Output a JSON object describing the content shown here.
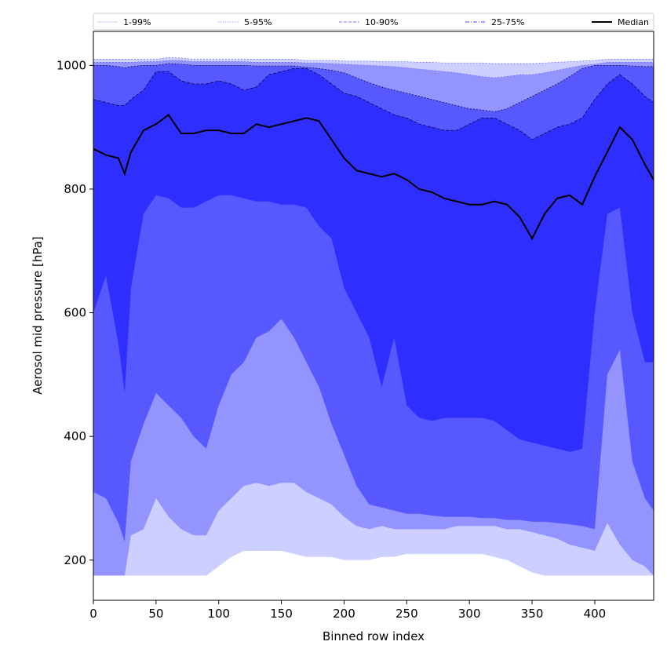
{
  "chart_data": {
    "type": "area",
    "title": "",
    "xlabel": "Binned row index",
    "ylabel": "Aerosol mid pressure [hPa]",
    "xlim": [
      0,
      447
    ],
    "ylim": [
      1055,
      135
    ],
    "y_inverted": false,
    "xticks": [
      0,
      50,
      100,
      150,
      200,
      250,
      300,
      350,
      400
    ],
    "yticks": [
      200,
      400,
      600,
      800,
      1000
    ],
    "legend": {
      "placement": "top",
      "entries": [
        {
          "label": "1-99%",
          "color": "#cccfff",
          "style": "solid"
        },
        {
          "label": "5-95%",
          "color": "#9a9aff",
          "style": "dotted"
        },
        {
          "label": "10-90%",
          "color": "#7a7aff",
          "style": "dashed"
        },
        {
          "label": "25-75%",
          "color": "#4444ff",
          "style": "dashdot"
        },
        {
          "label": "Median",
          "color": "#000000",
          "style": "solid"
        }
      ]
    },
    "band_colors": [
      "#cccfff",
      "#9494ff",
      "#5858ff",
      "#2e2eff"
    ],
    "x": [
      0,
      10,
      20,
      25,
      30,
      40,
      50,
      60,
      70,
      80,
      90,
      100,
      110,
      120,
      130,
      140,
      150,
      160,
      170,
      180,
      190,
      200,
      210,
      220,
      230,
      240,
      250,
      260,
      270,
      280,
      290,
      300,
      310,
      320,
      330,
      340,
      350,
      360,
      370,
      380,
      390,
      400,
      410,
      420,
      430,
      440,
      447
    ],
    "p01": [
      175,
      175,
      175,
      175,
      175,
      175,
      175,
      175,
      175,
      175,
      175,
      190,
      205,
      215,
      215,
      215,
      215,
      210,
      205,
      205,
      205,
      200,
      200,
      200,
      205,
      205,
      210,
      210,
      210,
      210,
      210,
      210,
      210,
      205,
      200,
      190,
      180,
      175,
      175,
      175,
      175,
      175,
      175,
      175,
      175,
      175,
      175
    ],
    "p99": [
      1010,
      1010,
      1010,
      1010,
      1010,
      1010,
      1010,
      1013,
      1012,
      1010,
      1010,
      1010,
      1010,
      1010,
      1010,
      1010,
      1010,
      1010,
      1008,
      1008,
      1008,
      1007,
      1007,
      1007,
      1006,
      1006,
      1006,
      1005,
      1005,
      1004,
      1004,
      1004,
      1004,
      1003,
      1003,
      1003,
      1003,
      1004,
      1005,
      1006,
      1007,
      1008,
      1010,
      1010,
      1010,
      1010,
      1010
    ],
    "p05": [
      175,
      175,
      175,
      175,
      240,
      250,
      300,
      270,
      250,
      240,
      240,
      280,
      300,
      320,
      325,
      320,
      325,
      325,
      310,
      300,
      290,
      270,
      255,
      250,
      255,
      250,
      250,
      250,
      250,
      250,
      255,
      255,
      255,
      255,
      250,
      250,
      245,
      240,
      235,
      225,
      220,
      215,
      260,
      225,
      200,
      190,
      175
    ],
    "p95": [
      1005,
      1005,
      1005,
      1005,
      1005,
      1006,
      1006,
      1008,
      1008,
      1006,
      1006,
      1006,
      1006,
      1006,
      1005,
      1005,
      1005,
      1005,
      1004,
      1004,
      1003,
      1002,
      1001,
      1000,
      999,
      998,
      996,
      994,
      992,
      990,
      988,
      985,
      982,
      980,
      982,
      985,
      985,
      988,
      992,
      996,
      1000,
      1002,
      1005,
      1005,
      1005,
      1005,
      1005
    ],
    "p10": [
      310,
      300,
      260,
      230,
      360,
      420,
      470,
      450,
      430,
      400,
      380,
      450,
      500,
      520,
      560,
      570,
      590,
      560,
      520,
      480,
      420,
      370,
      320,
      290,
      285,
      280,
      275,
      275,
      272,
      270,
      270,
      270,
      268,
      268,
      265,
      265,
      262,
      262,
      260,
      258,
      255,
      250,
      500,
      540,
      360,
      300,
      280
    ],
    "p90": [
      1000,
      1000,
      998,
      996,
      998,
      1000,
      1000,
      1003,
      1002,
      1000,
      1000,
      1000,
      1000,
      1000,
      999,
      999,
      999,
      999,
      997,
      995,
      992,
      988,
      980,
      972,
      965,
      960,
      955,
      950,
      945,
      940,
      935,
      930,
      928,
      925,
      930,
      940,
      950,
      960,
      970,
      982,
      995,
      1000,
      1000,
      1000,
      999,
      998,
      998
    ],
    "p25": [
      600,
      660,
      550,
      470,
      640,
      760,
      790,
      785,
      770,
      770,
      780,
      790,
      790,
      785,
      780,
      780,
      775,
      775,
      770,
      740,
      720,
      640,
      600,
      560,
      480,
      560,
      450,
      430,
      425,
      430,
      430,
      430,
      430,
      425,
      410,
      395,
      390,
      385,
      380,
      375,
      380,
      600,
      760,
      770,
      600,
      520,
      520
    ],
    "p75": [
      945,
      940,
      935,
      935,
      945,
      960,
      990,
      990,
      975,
      970,
      970,
      975,
      970,
      960,
      965,
      985,
      990,
      995,
      995,
      985,
      970,
      955,
      950,
      940,
      930,
      920,
      915,
      905,
      900,
      895,
      895,
      905,
      915,
      915,
      905,
      895,
      880,
      890,
      900,
      905,
      915,
      945,
      970,
      985,
      970,
      950,
      940
    ],
    "median": [
      865,
      855,
      850,
      825,
      860,
      895,
      905,
      920,
      890,
      890,
      895,
      895,
      890,
      890,
      905,
      900,
      905,
      910,
      915,
      910,
      880,
      850,
      830,
      825,
      820,
      825,
      815,
      800,
      795,
      785,
      780,
      775,
      775,
      780,
      775,
      755,
      720,
      760,
      785,
      790,
      775,
      820,
      860,
      900,
      880,
      840,
      815
    ]
  }
}
